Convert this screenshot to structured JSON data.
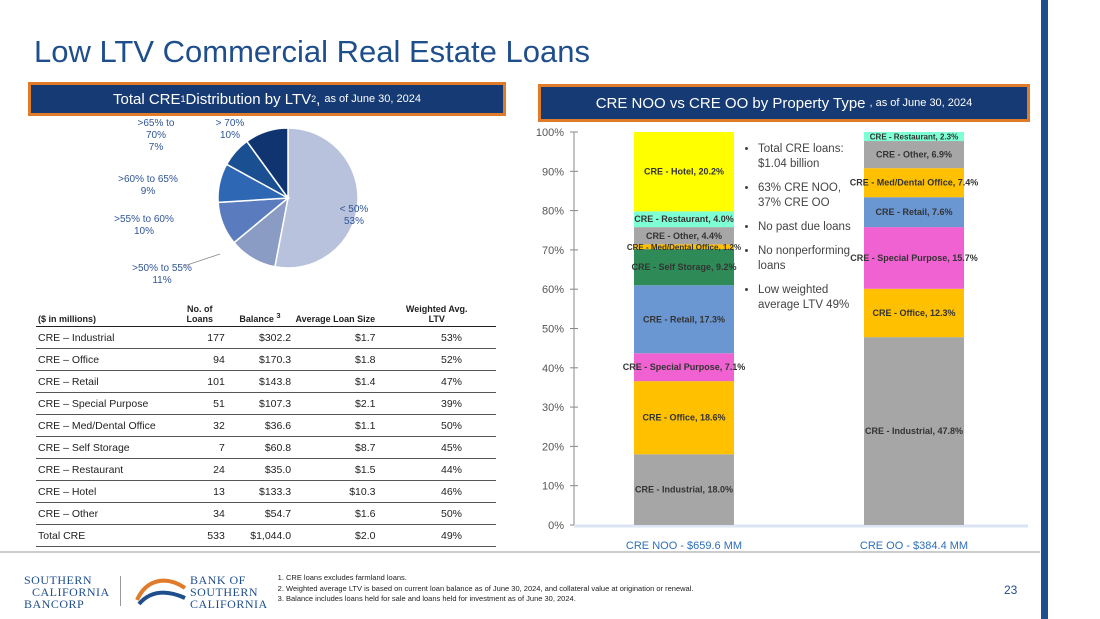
{
  "page": {
    "title": "Low LTV Commercial Real Estate Loans",
    "page_number": "23"
  },
  "left_header": {
    "text": "Total CRE",
    "sup1": "1",
    "text2": " Distribution by LTV ",
    "sup2": "2",
    "text3": ",",
    "date": "as of June 30, 2024"
  },
  "right_header": {
    "text": "CRE NOO vs CRE OO by Property Type",
    "date": ", as of June 30, 2024"
  },
  "pie_chart": {
    "type": "pie",
    "colors": [
      "#b8c2dc",
      "#8a9cc4",
      "#5a7cbf",
      "#2e67b3",
      "#1a4f92",
      "#0f3470"
    ],
    "slices": [
      {
        "label1": "< 50%",
        "label2": "53%",
        "label3": "",
        "value": 53
      },
      {
        "label1": ">50% to 55%",
        "label2": "11%",
        "label3": "",
        "value": 11
      },
      {
        "label1": ">55% to 60%",
        "label2": "10%",
        "label3": "",
        "value": 10
      },
      {
        "label1": ">60% to 65%",
        "label2": "9%",
        "label3": "",
        "value": 9
      },
      {
        "label1": ">65% to",
        "label2": "70%",
        "label3": "7%",
        "value": 7
      },
      {
        "label1": "> 70%",
        "label2": "10%",
        "label3": "",
        "value": 10
      }
    ]
  },
  "table": {
    "headers": {
      "c1": "($ in millions)",
      "c2a": "No. of",
      "c2b": "Loans",
      "c3": "Balance",
      "c3sup": "3",
      "c4": "Average Loan Size",
      "c5a": "Weighted Avg.",
      "c5b": "LTV"
    },
    "rows": [
      [
        "CRE – Industrial",
        "177",
        "$302.2",
        "$1.7",
        "53%"
      ],
      [
        "CRE – Office",
        "94",
        "$170.3",
        "$1.8",
        "52%"
      ],
      [
        "CRE – Retail",
        "101",
        "$143.8",
        "$1.4",
        "47%"
      ],
      [
        "CRE – Special Purpose",
        "51",
        "$107.3",
        "$2.1",
        "39%"
      ],
      [
        "CRE – Med/Dental Office",
        "32",
        "$36.6",
        "$1.1",
        "50%"
      ],
      [
        "CRE – Self Storage",
        "7",
        "$60.8",
        "$8.7",
        "45%"
      ],
      [
        "CRE – Restaurant",
        "24",
        "$35.0",
        "$1.5",
        "44%"
      ],
      [
        "CRE – Hotel",
        "13",
        "$133.3",
        "$10.3",
        "46%"
      ],
      [
        "CRE – Other",
        "34",
        "$54.7",
        "$1.6",
        "50%"
      ],
      [
        "Total CRE",
        "533",
        "$1,044.0",
        "$2.0",
        "49%"
      ]
    ]
  },
  "chart_data": {
    "type": "bar",
    "stacked": true,
    "percent": true,
    "ylim": [
      0,
      100
    ],
    "yticks": [
      "0%",
      "10%",
      "20%",
      "30%",
      "40%",
      "50%",
      "60%",
      "70%",
      "80%",
      "90%",
      "100%"
    ],
    "categories": [
      "CRE NOO - $659.6 MM",
      "CRE OO - $384.4 MM"
    ],
    "bars": [
      {
        "segments": [
          {
            "label": "CRE - Industrial, 18.0%",
            "value": 18.0,
            "color": "#a6a6a6"
          },
          {
            "label": "CRE - Office, 18.6%",
            "value": 18.6,
            "color": "#ffc000"
          },
          {
            "label": "CRE - Special Purpose, 7.1%",
            "value": 7.1,
            "color": "#f062d2"
          },
          {
            "label": "CRE - Retail, 17.3%",
            "value": 17.3,
            "color": "#6a96d2"
          },
          {
            "label": "CRE - Self Storage, 9.2%",
            "value": 9.2,
            "color": "#2e8b57"
          },
          {
            "label": "CRE - Med/Dental Office, 1.2%",
            "value": 1.2,
            "color": "#ffc000"
          },
          {
            "label": "CRE - Other, 4.4%",
            "value": 4.4,
            "color": "#a6a6a6"
          },
          {
            "label": "CRE - Restaurant, 4.0%",
            "value": 4.0,
            "color": "#7fffd4"
          },
          {
            "label": "CRE - Hotel, 20.2%",
            "value": 20.2,
            "color": "#ffff00"
          }
        ]
      },
      {
        "segments": [
          {
            "label": "CRE - Industrial, 47.8%",
            "value": 47.8,
            "color": "#a6a6a6"
          },
          {
            "label": "CRE - Office, 12.3%",
            "value": 12.3,
            "color": "#ffc000"
          },
          {
            "label": "CRE - Special Purpose, 15.7%",
            "value": 15.7,
            "color": "#f062d2"
          },
          {
            "label": "CRE - Retail, 7.6%",
            "value": 7.6,
            "color": "#6a96d2"
          },
          {
            "label": "CRE - Med/Dental Office, 7.4%",
            "value": 7.4,
            "color": "#ffc000"
          },
          {
            "label": "CRE - Other, 6.9%",
            "value": 6.9,
            "color": "#a6a6a6"
          },
          {
            "label": "CRE - Restaurant, 2.3%",
            "value": 2.3,
            "color": "#7fffd4"
          }
        ]
      }
    ]
  },
  "bullets": [
    "Total CRE loans: $1.04 billion",
    "63% CRE NOO, 37% CRE OO",
    "No past due loans",
    "No nonperforming loans",
    "Low weighted average LTV 49%"
  ],
  "footnotes": [
    "CRE loans excludes farmland loans.",
    "Weighted average LTV is based on current loan balance as of June 30, 2024, and collateral value at origination or renewal.",
    "Balance includes loans held for sale and loans held for investment as of June 30, 2024."
  ],
  "logos": {
    "scb": [
      "SOUTHERN",
      "CALIFORNIA",
      "BANCORP"
    ],
    "bank": [
      "BANK OF",
      "SOUTHERN",
      "CALIFORNIA"
    ]
  }
}
